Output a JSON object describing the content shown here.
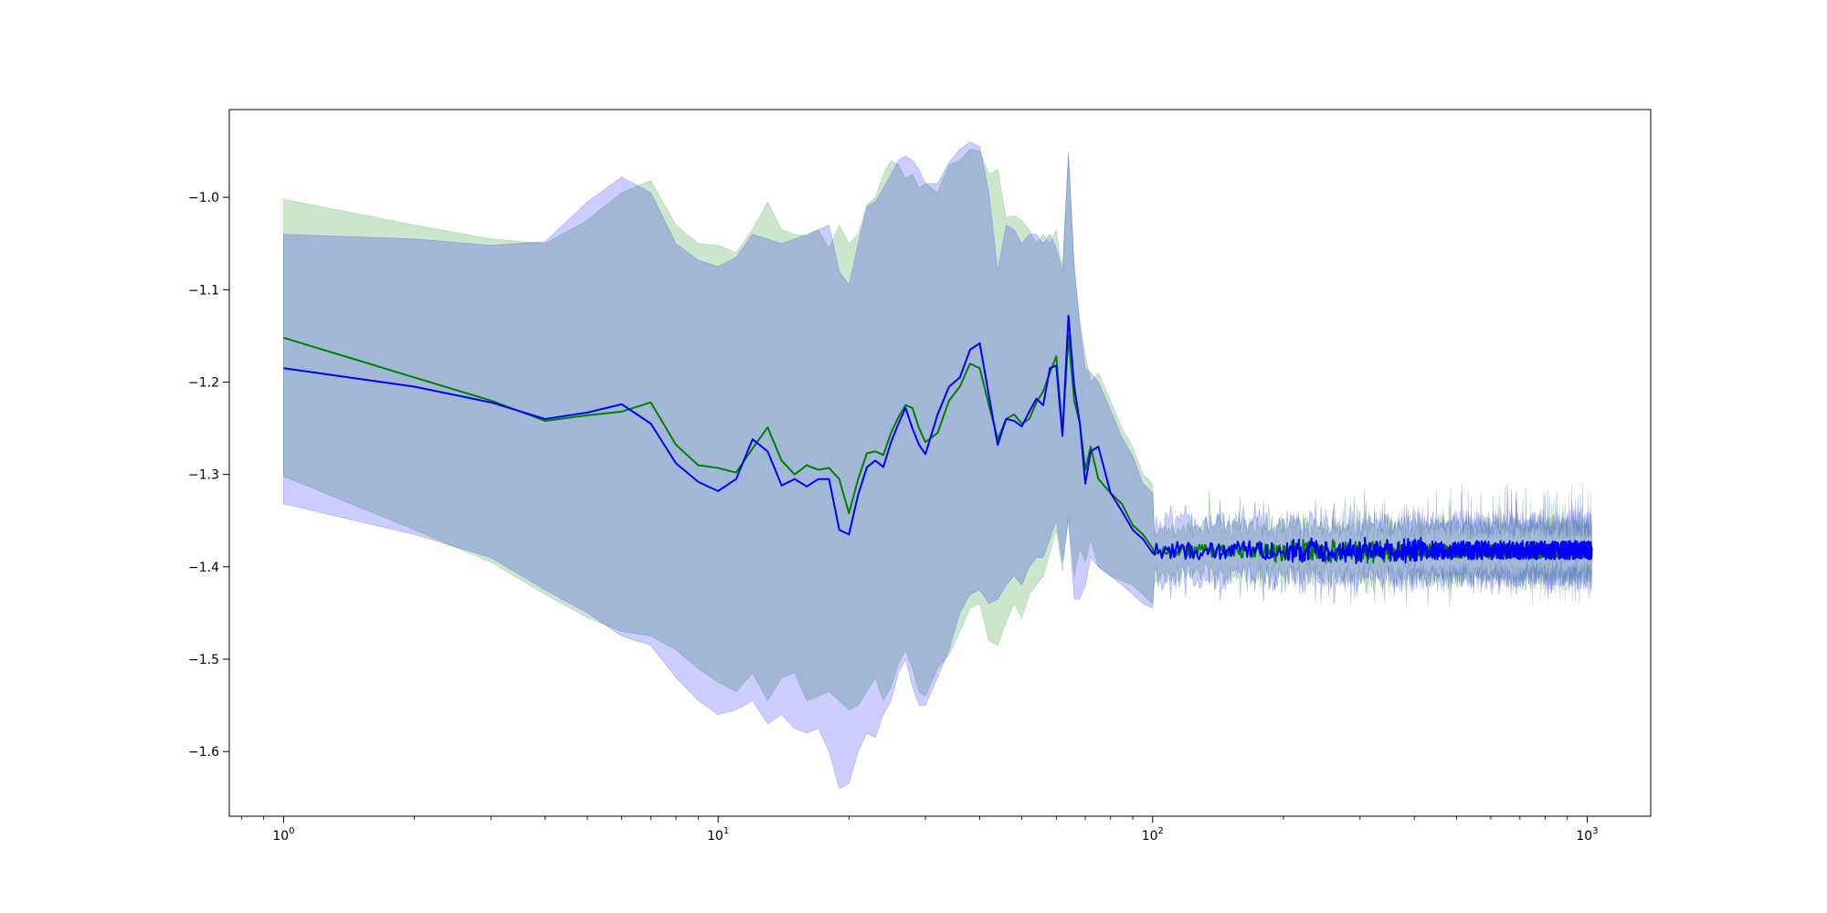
{
  "chart_data": {
    "type": "line",
    "title": "",
    "xlabel": "",
    "ylabel": "",
    "xscale": "log",
    "xlim": [
      0.75,
      1400
    ],
    "ylim": [
      -1.67,
      -0.905
    ],
    "grid": false,
    "legend": "none",
    "x_ticks": [
      {
        "value": 1,
        "base": "10",
        "exp": "0"
      },
      {
        "value": 10,
        "base": "10",
        "exp": "1"
      },
      {
        "value": 100,
        "base": "10",
        "exp": "2"
      },
      {
        "value": 1000,
        "base": "10",
        "exp": "3"
      }
    ],
    "y_ticks": [
      {
        "value": -1.0,
        "label": "−1.0"
      },
      {
        "value": -1.1,
        "label": "−1.1"
      },
      {
        "value": -1.2,
        "label": "−1.2"
      },
      {
        "value": -1.3,
        "label": "−1.3"
      },
      {
        "value": -1.4,
        "label": "−1.4"
      },
      {
        "value": -1.5,
        "label": "−1.5"
      },
      {
        "value": -1.6,
        "label": "−1.6"
      }
    ],
    "series": [
      {
        "color": "#008000",
        "band_color": "#008000",
        "band_opacity": 0.2,
        "x": [
          1,
          2,
          3,
          4,
          5,
          6,
          7,
          8,
          9,
          10,
          11,
          12,
          13,
          14,
          15,
          16,
          17,
          18,
          19,
          20,
          21,
          22,
          23,
          24,
          25,
          26,
          27,
          28,
          29,
          30,
          32,
          34,
          36,
          38,
          40,
          42,
          44,
          46,
          48,
          50,
          52,
          54,
          56,
          58,
          60,
          62,
          64,
          66,
          68,
          70,
          72,
          75,
          80,
          85,
          90,
          95,
          100
        ],
        "mean": [
          -1.152,
          -1.195,
          -1.22,
          -1.242,
          -1.236,
          -1.232,
          -1.222,
          -1.268,
          -1.29,
          -1.293,
          -1.298,
          -1.272,
          -1.249,
          -1.285,
          -1.3,
          -1.29,
          -1.295,
          -1.293,
          -1.305,
          -1.342,
          -1.305,
          -1.277,
          -1.275,
          -1.279,
          -1.255,
          -1.238,
          -1.225,
          -1.228,
          -1.25,
          -1.265,
          -1.255,
          -1.22,
          -1.205,
          -1.18,
          -1.185,
          -1.225,
          -1.262,
          -1.24,
          -1.235,
          -1.245,
          -1.24,
          -1.222,
          -1.21,
          -1.19,
          -1.172,
          -1.255,
          -1.15,
          -1.22,
          -1.245,
          -1.295,
          -1.27,
          -1.305,
          -1.32,
          -1.332,
          -1.355,
          -1.365,
          -1.38
        ],
        "upper": [
          -1.002,
          -1.03,
          -1.045,
          -1.05,
          -1.025,
          -0.995,
          -0.982,
          -1.03,
          -1.05,
          -1.052,
          -1.06,
          -1.035,
          -1.005,
          -1.035,
          -1.04,
          -1.042,
          -1.035,
          -1.055,
          -1.03,
          -1.05,
          -1.04,
          -1.008,
          -1.0,
          -0.975,
          -0.96,
          -0.965,
          -0.98,
          -0.975,
          -0.99,
          -0.985,
          -0.995,
          -0.965,
          -0.96,
          -0.948,
          -0.95,
          -0.975,
          -0.97,
          -1.022,
          -1.02,
          -1.025,
          -1.035,
          -1.05,
          -1.04,
          -1.05,
          -1.035,
          -1.08,
          -0.955,
          -1.075,
          -1.135,
          -1.17,
          -1.2,
          -1.19,
          -1.22,
          -1.25,
          -1.27,
          -1.3,
          -1.31
        ],
        "lower": [
          -1.302,
          -1.36,
          -1.395,
          -1.43,
          -1.455,
          -1.47,
          -1.475,
          -1.49,
          -1.51,
          -1.525,
          -1.535,
          -1.515,
          -1.545,
          -1.52,
          -1.515,
          -1.545,
          -1.54,
          -1.535,
          -1.545,
          -1.555,
          -1.55,
          -1.535,
          -1.52,
          -1.545,
          -1.53,
          -1.505,
          -1.49,
          -1.51,
          -1.535,
          -1.54,
          -1.51,
          -1.495,
          -1.47,
          -1.445,
          -1.44,
          -1.48,
          -1.485,
          -1.46,
          -1.44,
          -1.455,
          -1.43,
          -1.42,
          -1.41,
          -1.385,
          -1.36,
          -1.405,
          -1.345,
          -1.41,
          -1.38,
          -1.395,
          -1.37,
          -1.4,
          -1.41,
          -1.415,
          -1.42,
          -1.43,
          -1.44
        ]
      },
      {
        "color": "#0000ff",
        "band_color": "#0000ff",
        "band_opacity": 0.2,
        "x": [
          1,
          2,
          3,
          4,
          5,
          6,
          7,
          8,
          9,
          10,
          11,
          12,
          13,
          14,
          15,
          16,
          17,
          18,
          19,
          20,
          21,
          22,
          23,
          24,
          25,
          26,
          27,
          28,
          29,
          30,
          32,
          34,
          36,
          38,
          40,
          42,
          44,
          46,
          48,
          50,
          52,
          54,
          56,
          58,
          60,
          62,
          64,
          66,
          68,
          70,
          72,
          75,
          80,
          85,
          90,
          95,
          100
        ],
        "mean": [
          -1.185,
          -1.205,
          -1.222,
          -1.24,
          -1.233,
          -1.224,
          -1.245,
          -1.288,
          -1.308,
          -1.318,
          -1.305,
          -1.262,
          -1.275,
          -1.312,
          -1.305,
          -1.313,
          -1.305,
          -1.305,
          -1.36,
          -1.365,
          -1.322,
          -1.292,
          -1.285,
          -1.292,
          -1.265,
          -1.245,
          -1.228,
          -1.25,
          -1.268,
          -1.278,
          -1.235,
          -1.205,
          -1.195,
          -1.165,
          -1.158,
          -1.215,
          -1.268,
          -1.24,
          -1.242,
          -1.248,
          -1.232,
          -1.218,
          -1.225,
          -1.185,
          -1.182,
          -1.258,
          -1.128,
          -1.205,
          -1.245,
          -1.31,
          -1.275,
          -1.27,
          -1.32,
          -1.34,
          -1.36,
          -1.37,
          -1.385
        ],
        "upper": [
          -1.04,
          -1.045,
          -1.052,
          -1.048,
          -1.005,
          -0.978,
          -0.995,
          -1.05,
          -1.068,
          -1.075,
          -1.065,
          -1.04,
          -1.045,
          -1.05,
          -1.045,
          -1.04,
          -1.035,
          -1.03,
          -1.08,
          -1.095,
          -1.05,
          -1.01,
          -1.005,
          -0.99,
          -0.975,
          -0.96,
          -0.955,
          -0.96,
          -0.97,
          -0.985,
          -0.985,
          -0.962,
          -0.948,
          -0.94,
          -0.945,
          -0.995,
          -1.08,
          -1.03,
          -1.035,
          -1.05,
          -1.04,
          -1.04,
          -1.05,
          -1.04,
          -1.055,
          -1.08,
          -0.95,
          -1.075,
          -1.14,
          -1.185,
          -1.19,
          -1.2,
          -1.23,
          -1.26,
          -1.28,
          -1.31,
          -1.32
        ],
        "lower": [
          -1.332,
          -1.365,
          -1.39,
          -1.425,
          -1.45,
          -1.475,
          -1.485,
          -1.52,
          -1.545,
          -1.56,
          -1.555,
          -1.545,
          -1.57,
          -1.56,
          -1.575,
          -1.58,
          -1.575,
          -1.6,
          -1.64,
          -1.635,
          -1.6,
          -1.58,
          -1.585,
          -1.56,
          -1.545,
          -1.515,
          -1.5,
          -1.53,
          -1.55,
          -1.55,
          -1.52,
          -1.49,
          -1.45,
          -1.43,
          -1.425,
          -1.44,
          -1.435,
          -1.42,
          -1.41,
          -1.42,
          -1.4,
          -1.39,
          -1.39,
          -1.37,
          -1.35,
          -1.395,
          -1.35,
          -1.435,
          -1.435,
          -1.42,
          -1.39,
          -1.4,
          -1.41,
          -1.42,
          -1.43,
          -1.44,
          -1.445
        ]
      }
    ],
    "tail": {
      "x_start": 100,
      "x_end": 1024,
      "series": [
        {
          "level": -1.383,
          "amplitude": 0.008,
          "band_halfwidth": 0.03,
          "color": "#008000"
        },
        {
          "level": -1.382,
          "amplitude": 0.01,
          "band_halfwidth": 0.032,
          "color": "#0000ff"
        }
      ]
    }
  }
}
